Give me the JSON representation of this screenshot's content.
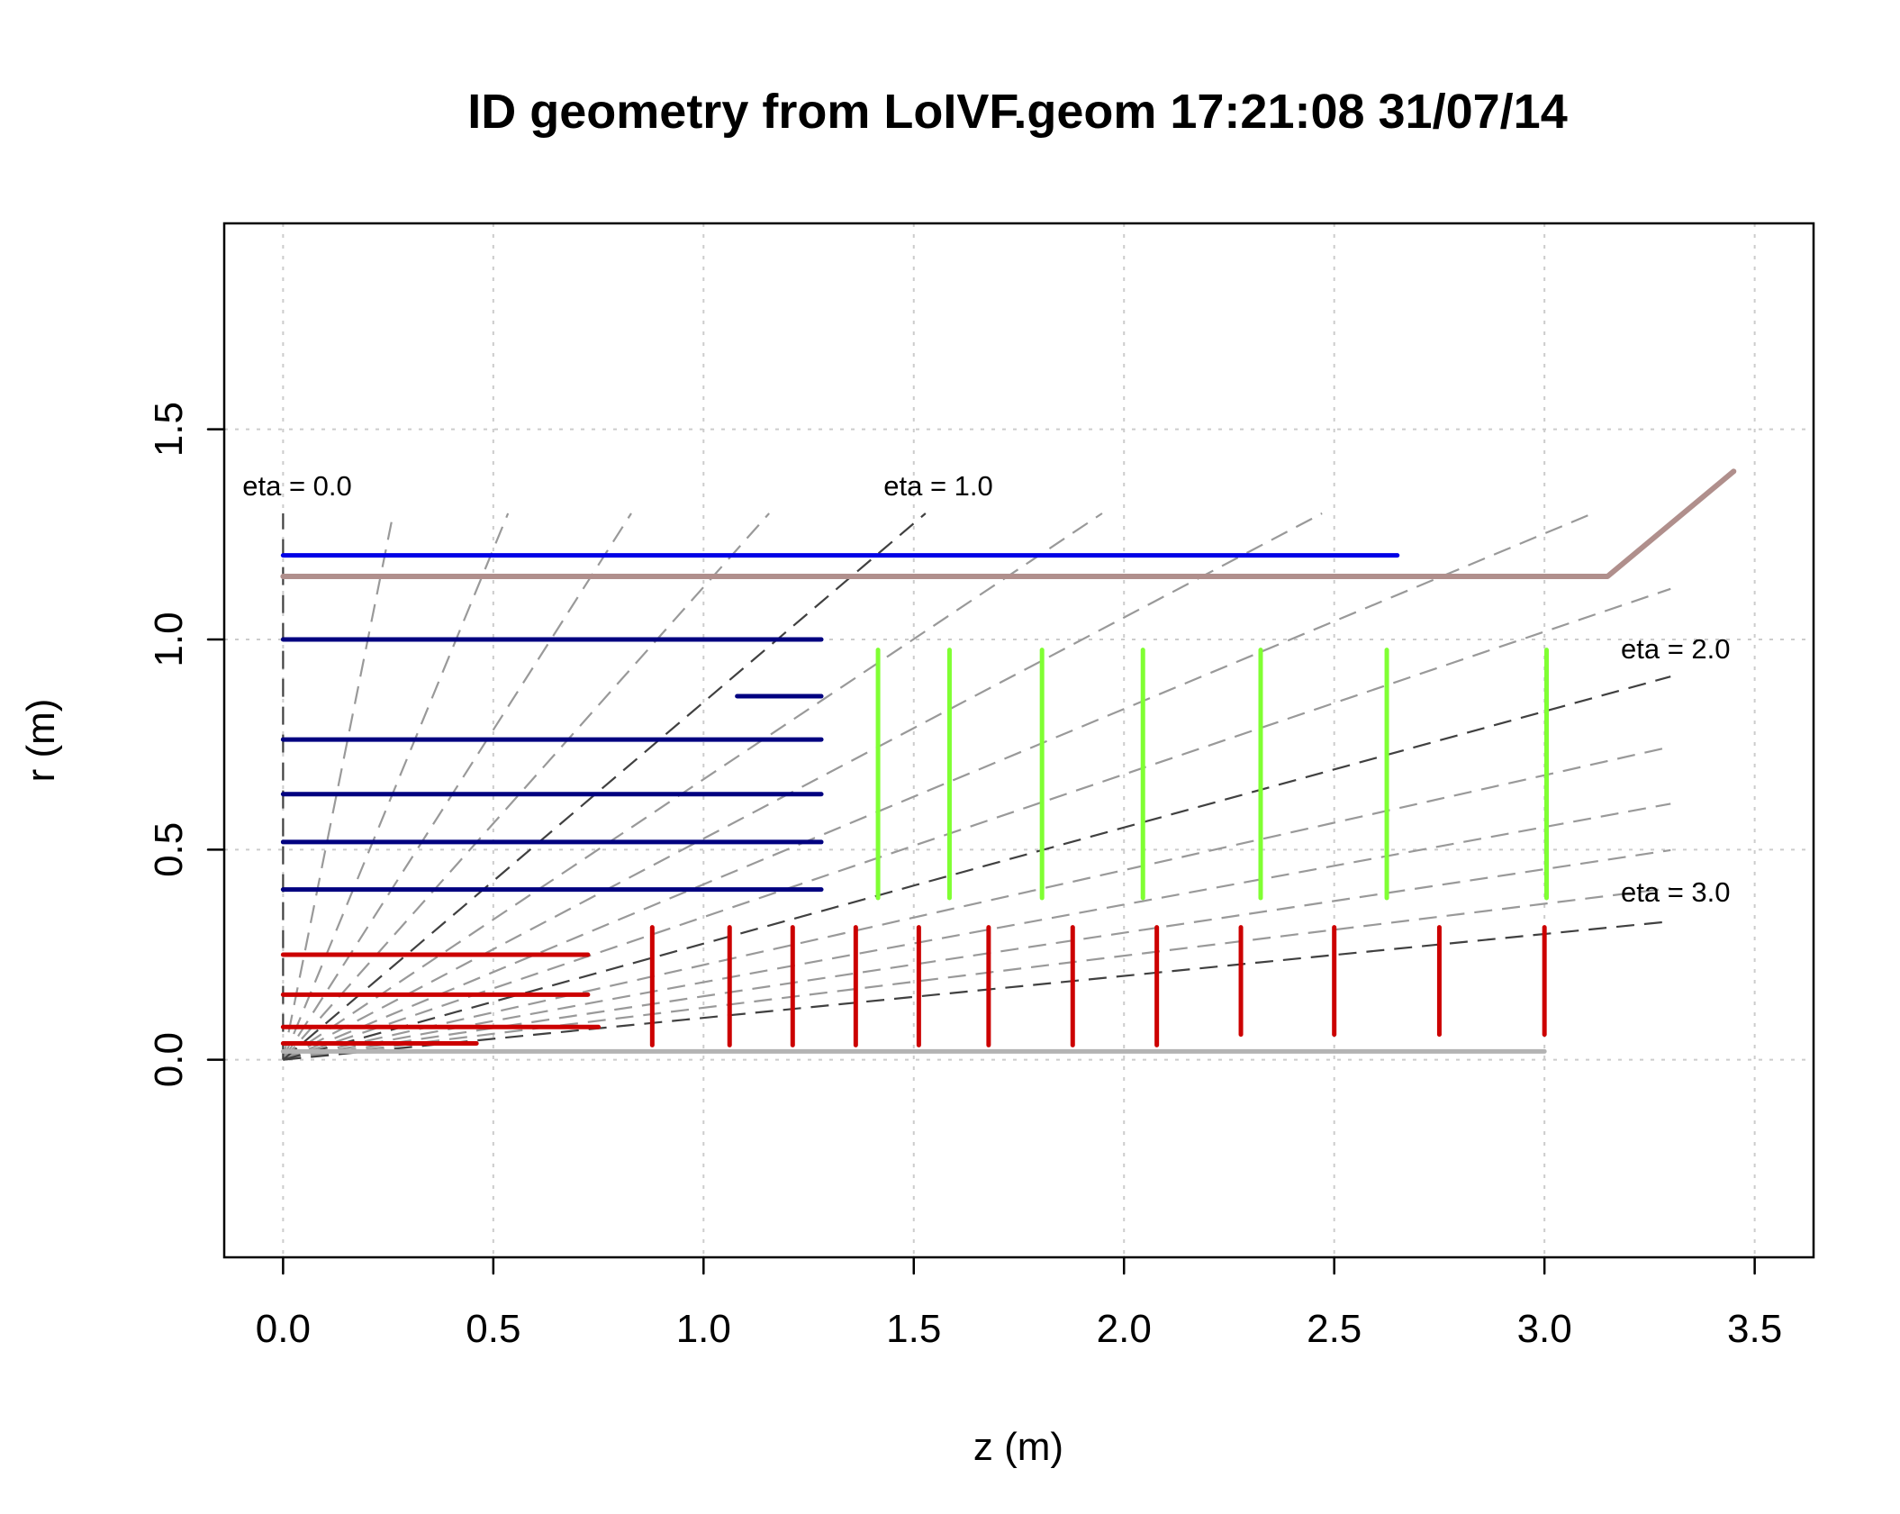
{
  "chart_data": {
    "type": "line",
    "title": "ID geometry from LoIVF.geom 17:21:08  31/07/14",
    "xlabel": "z (m)",
    "ylabel": "r (m)",
    "xlim": [
      -0.14,
      3.64
    ],
    "ylim": [
      -0.47,
      1.99
    ],
    "xticks": [
      0.0,
      0.5,
      1.0,
      1.5,
      2.0,
      2.5,
      3.0,
      3.5
    ],
    "xtick_labels": [
      "0.0",
      "0.5",
      "1.0",
      "1.5",
      "2.0",
      "2.5",
      "3.0",
      "3.5"
    ],
    "yticks": [
      0.0,
      0.5,
      1.0,
      1.5
    ],
    "ytick_labels": [
      "0.0",
      "0.5",
      "1.0",
      "1.5"
    ],
    "grid": true,
    "colors": {
      "outer_barrel": "#0000e6",
      "strip_barrel": "#000080",
      "pixel": "#cc0000",
      "strip_disk": "#80ff33",
      "beampipe": "#b3b3b3",
      "envelope": "#b08f8c",
      "eta_major": "#404040",
      "eta_minor": "#999999"
    },
    "eta_lines": {
      "labeled": [
        {
          "eta": 0.0,
          "label": "eta = 0.0",
          "z_end": 0.0,
          "r_end": 1.3
        },
        {
          "eta": 1.0,
          "label": "eta = 1.0",
          "z_end": 1.528,
          "r_end": 1.3
        },
        {
          "eta": 2.0,
          "label": "eta = 2.0",
          "z_end": 3.3,
          "r_end": 0.9118
        },
        {
          "eta": 3.0,
          "label": "eta = 3.0",
          "z_end": 3.3,
          "r_end": 0.3292
        }
      ],
      "unlabeled": [
        {
          "eta": 0.2,
          "z_end": 0.262,
          "r_end": 1.3
        },
        {
          "eta": 0.4,
          "z_end": 0.535,
          "r_end": 1.3
        },
        {
          "eta": 0.6,
          "z_end": 0.828,
          "r_end": 1.3
        },
        {
          "eta": 0.8,
          "z_end": 1.156,
          "r_end": 1.3
        },
        {
          "eta": 1.2,
          "z_end": 1.948,
          "r_end": 1.3
        },
        {
          "eta": 1.4,
          "z_end": 2.471,
          "r_end": 1.3
        },
        {
          "eta": 1.6,
          "z_end": 3.115,
          "r_end": 1.3
        },
        {
          "eta": 1.8,
          "z_end": 3.3,
          "r_end": 1.1204
        },
        {
          "eta": 2.2,
          "z_end": 3.3,
          "r_end": 0.7446
        },
        {
          "eta": 2.4,
          "z_end": 3.3,
          "r_end": 0.6091
        },
        {
          "eta": 2.6,
          "z_end": 3.3,
          "r_end": 0.4987
        },
        {
          "eta": 2.8,
          "z_end": 3.3,
          "r_end": 0.4084
        }
      ]
    },
    "barrel_layers": [
      {
        "series": "outer_barrel",
        "r": 1.2,
        "z_min": 0.0,
        "z_max": 2.65
      },
      {
        "series": "strip_barrel",
        "r": 1.0,
        "z_min": 0.0,
        "z_max": 1.28
      },
      {
        "series": "strip_barrel",
        "r": 0.865,
        "z_min": 1.08,
        "z_max": 1.28
      },
      {
        "series": "strip_barrel",
        "r": 0.762,
        "z_min": 0.0,
        "z_max": 1.28
      },
      {
        "series": "strip_barrel",
        "r": 0.632,
        "z_min": 0.0,
        "z_max": 1.28
      },
      {
        "series": "strip_barrel",
        "r": 0.518,
        "z_min": 0.0,
        "z_max": 1.28
      },
      {
        "series": "strip_barrel",
        "r": 0.405,
        "z_min": 0.0,
        "z_max": 1.28
      },
      {
        "series": "pixel",
        "r": 0.25,
        "z_min": 0.0,
        "z_max": 0.725
      },
      {
        "series": "pixel",
        "r": 0.155,
        "z_min": 0.0,
        "z_max": 0.725
      },
      {
        "series": "pixel",
        "r": 0.078,
        "z_min": 0.0,
        "z_max": 0.75
      },
      {
        "series": "pixel",
        "r": 0.039,
        "z_min": 0.0,
        "z_max": 0.46
      }
    ],
    "strip_disks": [
      {
        "z": 1.415,
        "r_min": 0.385,
        "r_max": 0.975
      },
      {
        "z": 1.585,
        "r_min": 0.385,
        "r_max": 0.975
      },
      {
        "z": 1.805,
        "r_min": 0.385,
        "r_max": 0.975
      },
      {
        "z": 2.045,
        "r_min": 0.385,
        "r_max": 0.975
      },
      {
        "z": 2.325,
        "r_min": 0.385,
        "r_max": 0.975
      },
      {
        "z": 2.625,
        "r_min": 0.385,
        "r_max": 0.975
      },
      {
        "z": 3.005,
        "r_min": 0.385,
        "r_max": 0.975
      }
    ],
    "pixel_disks": [
      {
        "z": 0.878,
        "r_min": 0.035,
        "r_max": 0.315
      },
      {
        "z": 1.062,
        "r_min": 0.035,
        "r_max": 0.315
      },
      {
        "z": 1.212,
        "r_min": 0.035,
        "r_max": 0.315
      },
      {
        "z": 1.362,
        "r_min": 0.035,
        "r_max": 0.315
      },
      {
        "z": 1.512,
        "r_min": 0.035,
        "r_max": 0.315
      },
      {
        "z": 1.678,
        "r_min": 0.035,
        "r_max": 0.315
      },
      {
        "z": 1.878,
        "r_min": 0.035,
        "r_max": 0.315
      },
      {
        "z": 2.078,
        "r_min": 0.035,
        "r_max": 0.315
      },
      {
        "z": 2.278,
        "r_min": 0.06,
        "r_max": 0.315
      },
      {
        "z": 2.5,
        "r_min": 0.06,
        "r_max": 0.315
      },
      {
        "z": 2.75,
        "r_min": 0.06,
        "r_max": 0.315
      },
      {
        "z": 3.0,
        "r_min": 0.06,
        "r_max": 0.315
      }
    ],
    "beampipe": {
      "r": 0.02,
      "z_min": 0.0,
      "z_max": 3.0
    },
    "envelope": {
      "z": [
        0.0,
        3.15,
        3.45
      ],
      "r": [
        1.15,
        1.15,
        1.4
      ]
    }
  }
}
